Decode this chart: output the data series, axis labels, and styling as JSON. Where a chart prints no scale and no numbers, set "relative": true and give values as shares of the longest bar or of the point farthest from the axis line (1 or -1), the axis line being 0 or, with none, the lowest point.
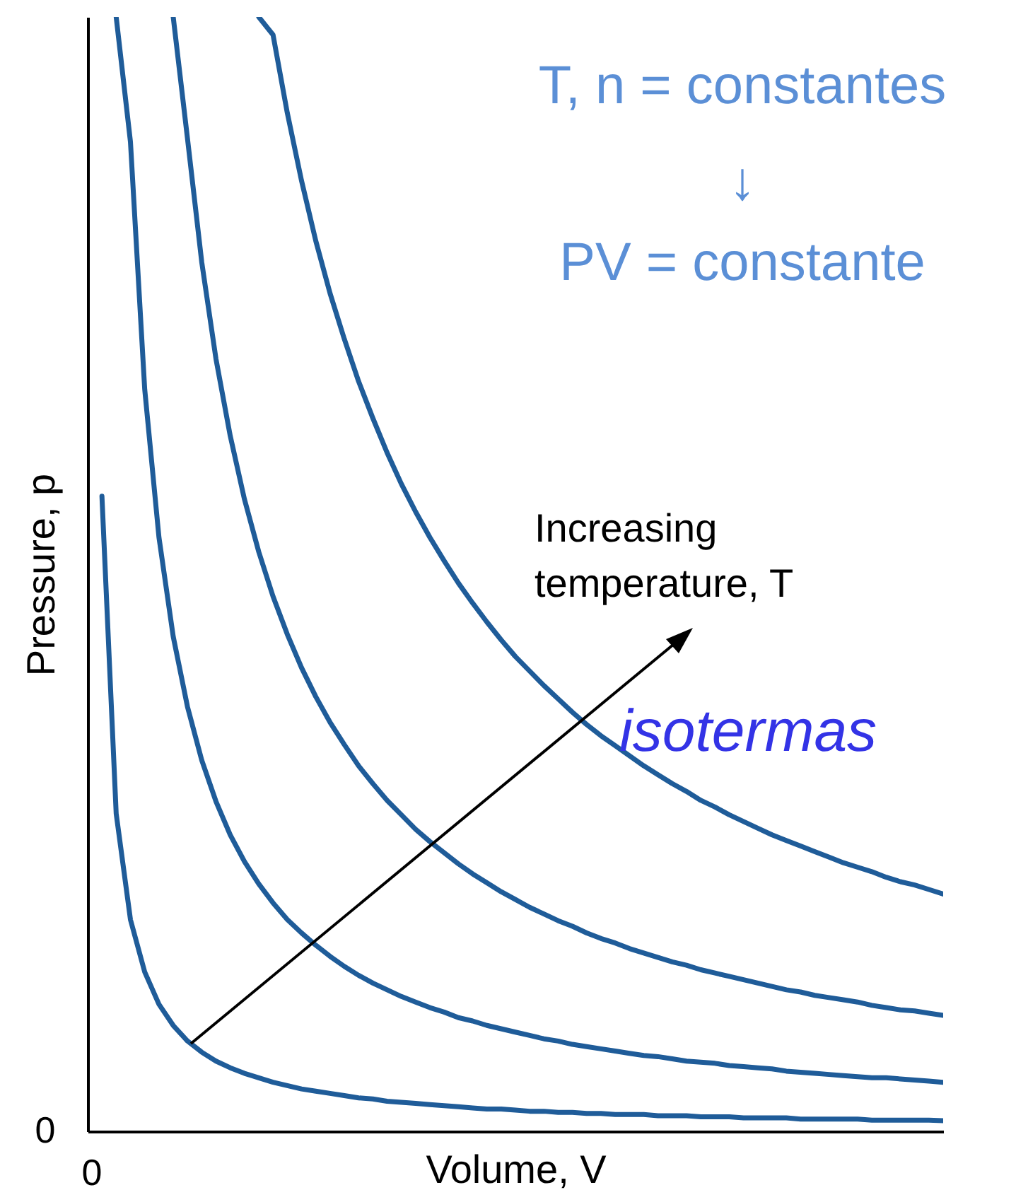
{
  "chart_data": {
    "type": "line",
    "relative": true,
    "xlabel": "Volume, V",
    "ylabel": "Pressure, p",
    "categories": [
      null,
      null,
      null,
      null,
      null,
      null,
      null,
      null,
      null,
      null,
      null,
      null,
      null,
      null,
      null,
      null,
      null,
      null,
      null,
      null,
      null,
      null,
      null,
      null,
      null,
      null,
      null,
      null,
      null,
      null,
      null,
      null,
      null,
      null,
      null,
      null,
      null,
      null,
      null,
      null,
      null,
      null,
      null,
      null,
      null,
      null,
      null,
      null,
      null,
      null,
      null,
      null,
      null,
      null,
      null,
      null,
      null,
      null,
      null,
      null,
      null
    ],
    "series": [
      {
        "color": "#1f5c99",
        "values": [
          null,
          0.57,
          0.285,
          0.19,
          0.143,
          0.114,
          0.095,
          0.081,
          0.071,
          0.063,
          0.057,
          0.052,
          0.048,
          0.044,
          0.041,
          0.038,
          0.036,
          0.034,
          0.032,
          0.03,
          0.029,
          0.027,
          0.026,
          0.025,
          0.024,
          0.023,
          0.022,
          0.021,
          0.02,
          0.02,
          0.019,
          0.018,
          0.018,
          0.017,
          0.017,
          0.016,
          0.016,
          0.015,
          0.015,
          0.015,
          0.014,
          0.014,
          0.014,
          0.013,
          0.013,
          0.013,
          0.012,
          0.012,
          0.012,
          0.012,
          0.011,
          0.011,
          0.011,
          0.011,
          0.011,
          0.01,
          0.01,
          0.01,
          0.01,
          0.01,
          0.0095
        ]
      },
      {
        "color": "#1f5c99",
        "values": [
          null,
          null,
          1,
          0.888,
          0.666,
          0.533,
          0.444,
          0.381,
          0.333,
          0.296,
          0.266,
          0.242,
          0.222,
          0.205,
          0.19,
          0.178,
          0.167,
          0.157,
          0.148,
          0.14,
          0.133,
          0.127,
          0.121,
          0.116,
          0.111,
          0.107,
          0.102,
          0.099,
          0.095,
          0.092,
          0.089,
          0.086,
          0.083,
          0.081,
          0.078,
          0.076,
          0.074,
          0.072,
          0.07,
          0.068,
          0.067,
          0.065,
          0.063,
          0.062,
          0.061,
          0.059,
          0.058,
          0.057,
          0.056,
          0.054,
          0.053,
          0.052,
          0.051,
          0.05,
          0.049,
          0.048,
          0.048,
          0.047,
          0.046,
          0.045,
          0.044
        ]
      },
      {
        "color": "#1f5c99",
        "values": [
          null,
          null,
          null,
          null,
          null,
          null,
          1,
          0.891,
          0.78,
          0.693,
          0.624,
          0.567,
          0.52,
          0.48,
          0.446,
          0.416,
          0.39,
          0.367,
          0.347,
          0.328,
          0.312,
          0.297,
          0.284,
          0.271,
          0.26,
          0.25,
          0.24,
          0.231,
          0.223,
          0.215,
          0.208,
          0.201,
          0.195,
          0.189,
          0.184,
          0.178,
          0.173,
          0.169,
          0.164,
          0.16,
          0.156,
          0.152,
          0.149,
          0.145,
          0.142,
          0.139,
          0.136,
          0.133,
          0.13,
          0.127,
          0.125,
          0.122,
          0.12,
          0.118,
          0.116,
          0.113,
          0.111,
          0.109,
          0.108,
          0.106,
          0.104
        ]
      },
      {
        "color": "#1f5c99",
        "values": [
          null,
          null,
          null,
          null,
          null,
          null,
          null,
          null,
          null,
          null,
          null,
          null,
          1,
          0.984,
          0.914,
          0.853,
          0.799,
          0.752,
          0.711,
          0.673,
          0.64,
          0.609,
          0.581,
          0.556,
          0.533,
          0.512,
          0.492,
          0.474,
          0.457,
          0.441,
          0.426,
          0.413,
          0.4,
          0.388,
          0.376,
          0.365,
          0.355,
          0.346,
          0.337,
          0.328,
          0.32,
          0.312,
          0.305,
          0.297,
          0.291,
          0.284,
          0.278,
          0.272,
          0.266,
          0.261,
          0.256,
          0.251,
          0.246,
          0.241,
          0.237,
          0.233,
          0.228,
          0.224,
          0.221,
          0.217,
          0.213
        ]
      }
    ],
    "annotations": [
      "T, n = constantes",
      "↓",
      "PV = constante",
      "Increasing\ntemperature, T",
      "isotermas",
      "0",
      "0"
    ]
  }
}
